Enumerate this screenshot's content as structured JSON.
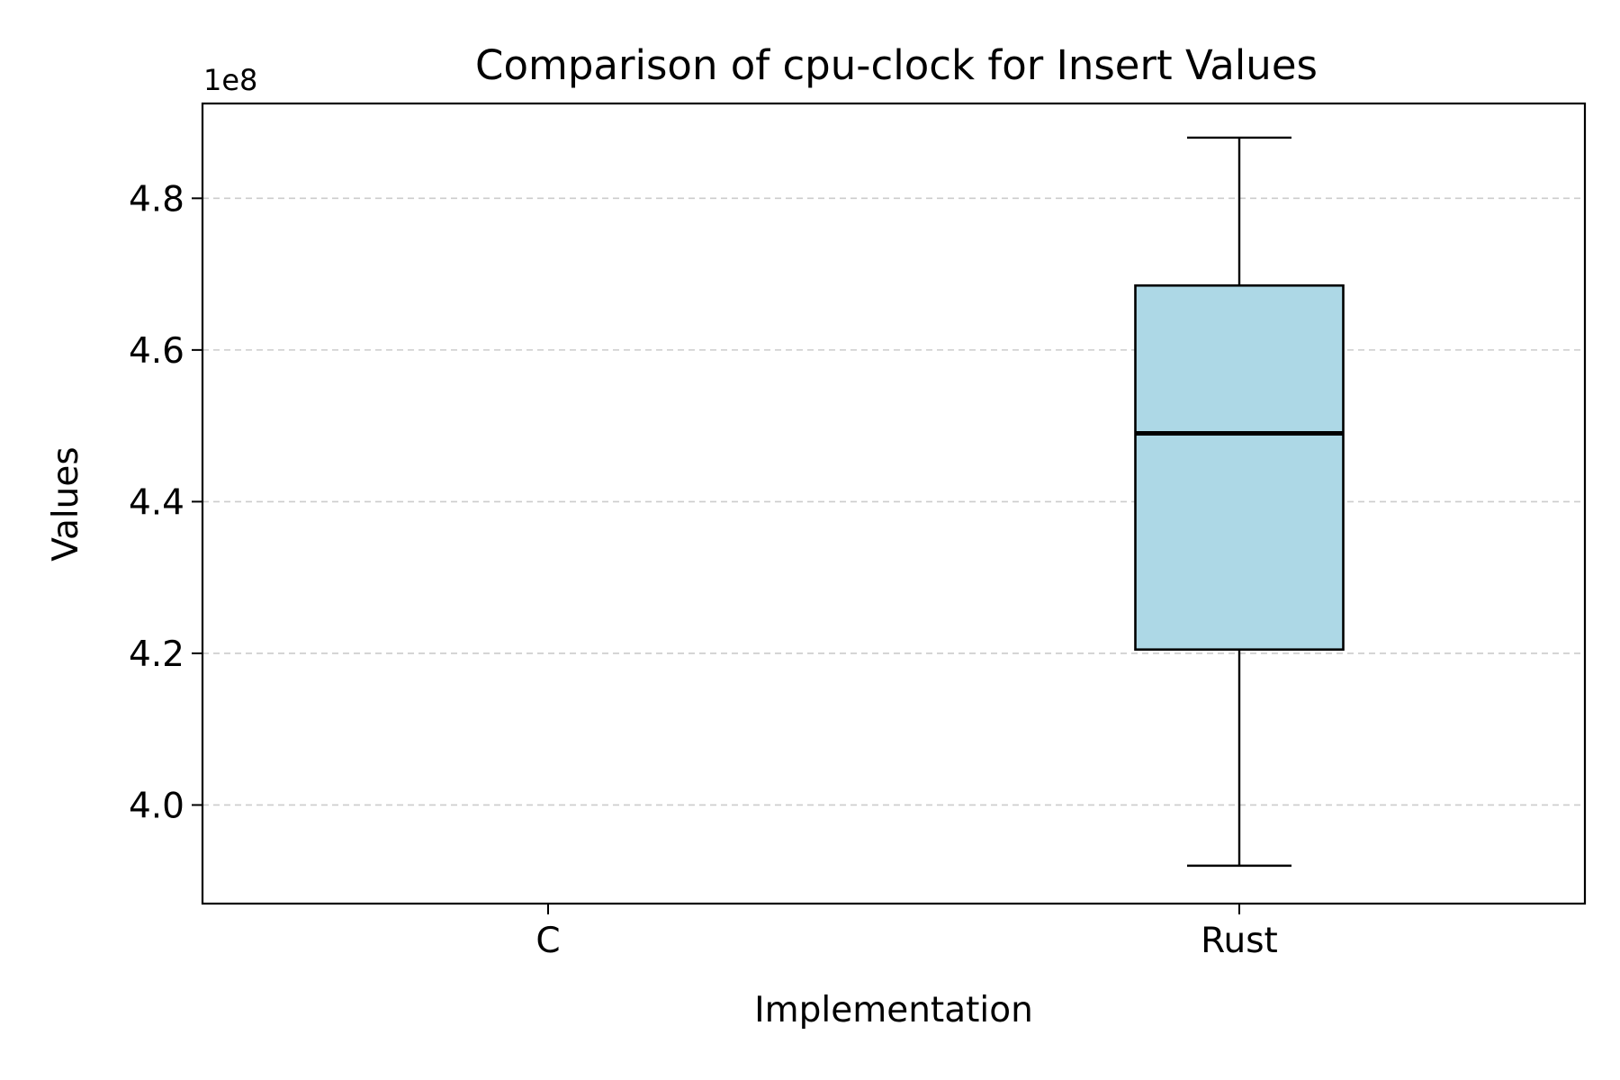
{
  "chart_data": {
    "type": "box",
    "title": "Comparison of cpu-clock for Insert Values",
    "xlabel": "Implementation",
    "ylabel": "Values",
    "y_offset_label": "1e8",
    "y_scale_factor": 100000000,
    "ylim": [
      3.87,
      4.925
    ],
    "yticks": [
      4.0,
      4.2,
      4.4,
      4.6,
      4.8
    ],
    "ytick_labels": [
      "4.0",
      "4.2",
      "4.4",
      "4.6",
      "4.8"
    ],
    "grid": "horizontal dashed",
    "categories": [
      "C",
      "Rust"
    ],
    "boxes": [
      {
        "name": "C",
        "data": null
      },
      {
        "name": "Rust",
        "whisker_low": 3.92,
        "q1": 4.205,
        "median": 4.49,
        "q3": 4.685,
        "whisker_high": 4.88
      }
    ],
    "colors": {
      "box_fill": "#add8e6",
      "box_edge": "#000000",
      "grid": "#cccccc",
      "median": "#000000"
    }
  }
}
